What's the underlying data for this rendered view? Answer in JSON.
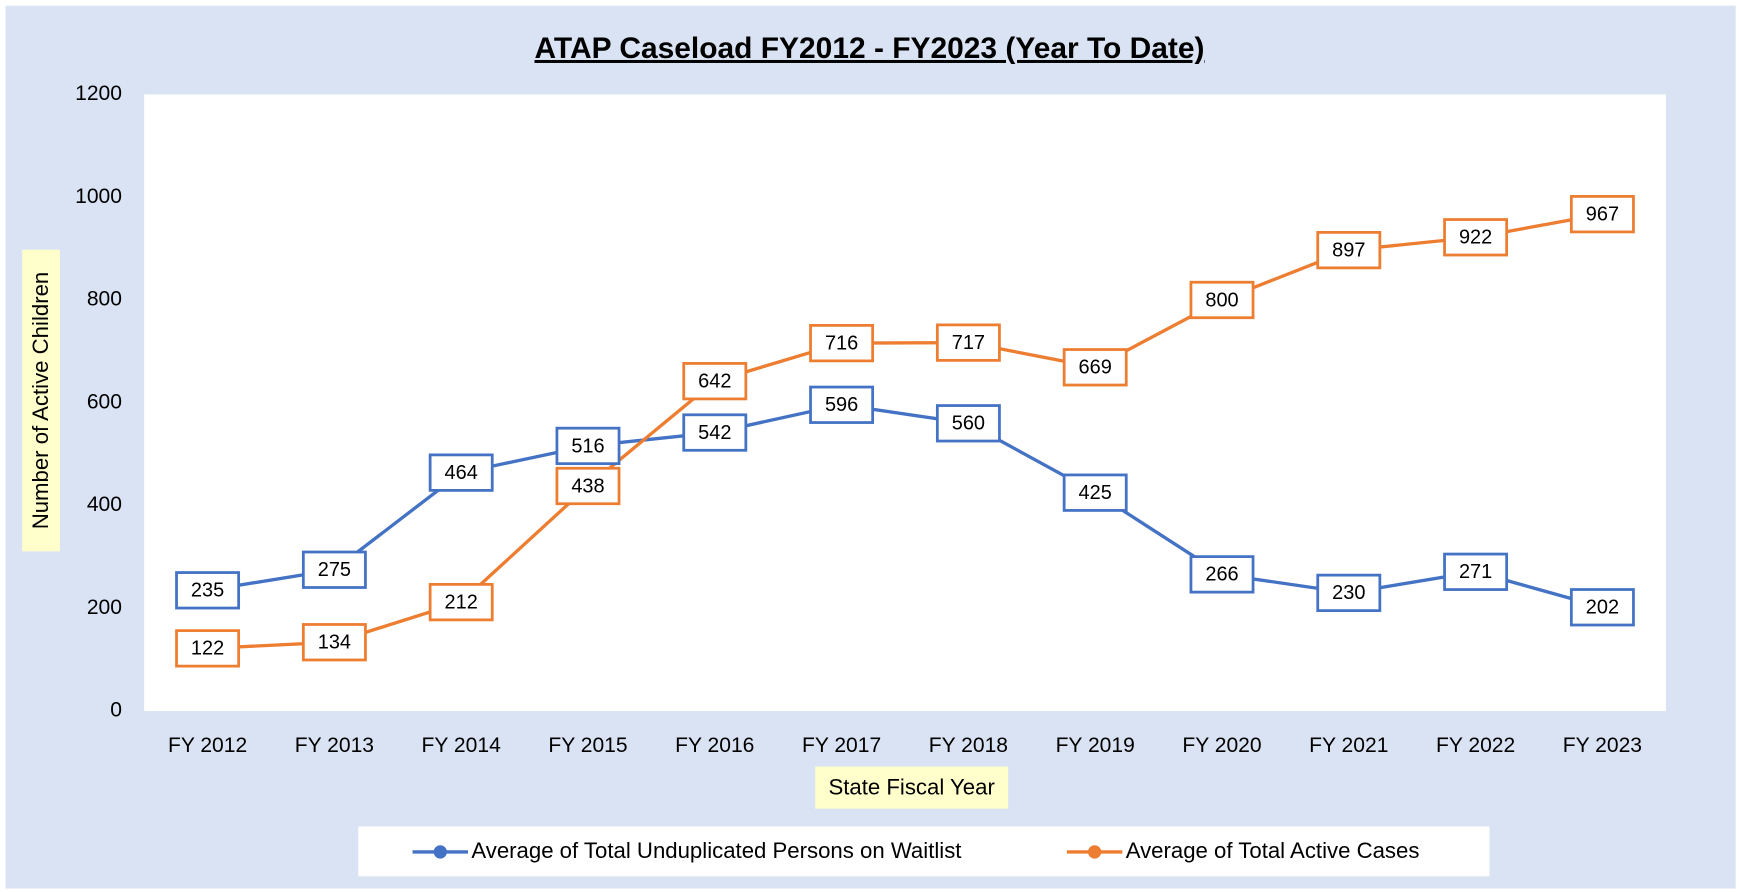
{
  "chart_data": {
    "type": "line",
    "title": "ATAP Caseload FY2012 - FY2023 (Year To Date)",
    "x_label": "State Fiscal Year",
    "y_label": "Number of Active Children",
    "categories": [
      "FY 2012",
      "FY 2013",
      "FY 2014",
      "FY 2015",
      "FY 2016",
      "FY 2017",
      "FY 2018",
      "FY 2019",
      "FY 2020",
      "FY 2021",
      "FY 2022",
      "FY 2023"
    ],
    "series": [
      {
        "name": "Average of Total Unduplicated Persons on Waitlist",
        "color": "#4472c4",
        "values": [
          235,
          275,
          464,
          516,
          542,
          596,
          560,
          425,
          266,
          230,
          271,
          202
        ]
      },
      {
        "name": "Average of Total Active Cases",
        "color": "#ed7d31",
        "values": [
          122,
          134,
          212,
          438,
          642,
          716,
          717,
          669,
          800,
          897,
          922,
          967
        ]
      }
    ],
    "ylim": [
      0,
      1200
    ],
    "yticks": [
      0,
      200,
      400,
      600,
      800,
      1000,
      1200
    ],
    "grid": false,
    "legend": "bottom"
  }
}
